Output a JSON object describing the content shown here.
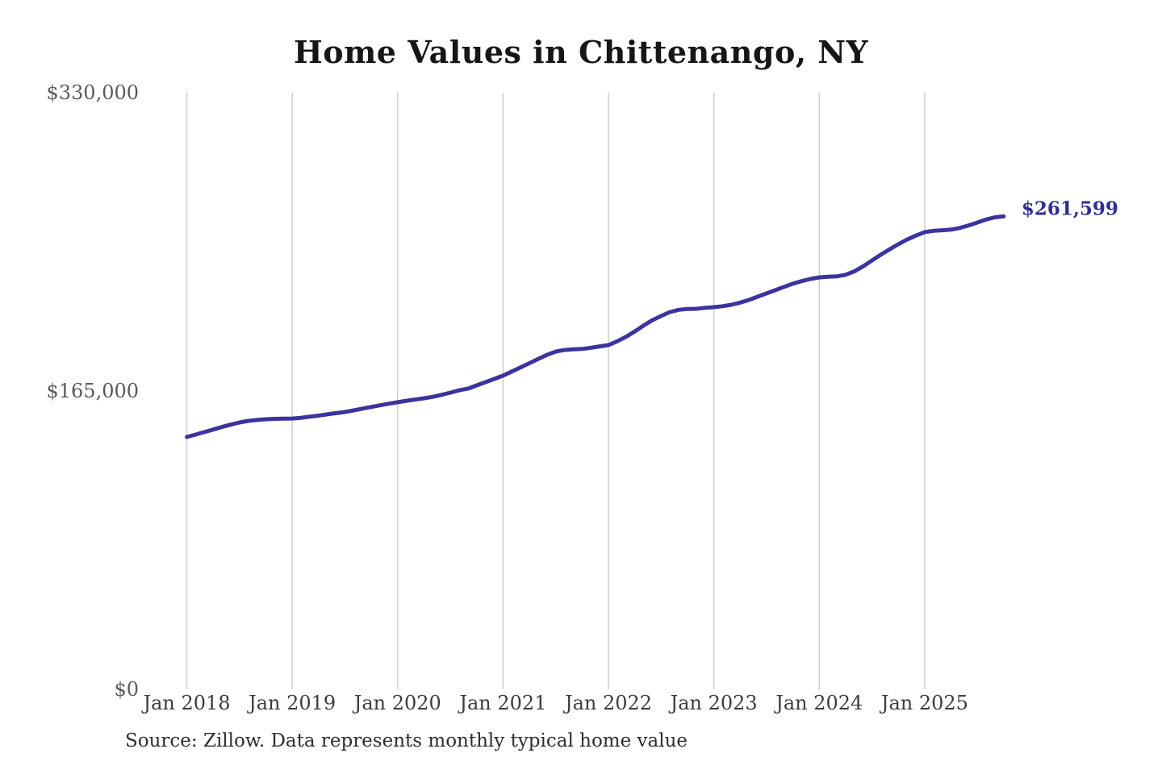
{
  "title": "Home Values in Chittenango, NY",
  "source_note": "Source: Zillow. Data represents monthly typical home value",
  "colors": {
    "line": "#3b349e",
    "final_label": "#312d94",
    "gridline": "#cbcbcb",
    "title_text": "#161616",
    "y_tick_text": "#5a5a5a",
    "x_tick_text": "#3d3d3d",
    "source_text": "#2e2e2e",
    "background": "#ffffff"
  },
  "chart_data": {
    "type": "line",
    "title": "Home Values in Chittenango, NY",
    "xlabel": "",
    "ylabel": "",
    "x_tick_labels": [
      "Jan 2018",
      "Jan 2019",
      "Jan 2020",
      "Jan 2021",
      "Jan 2022",
      "Jan 2023",
      "Jan 2024",
      "Jan 2025"
    ],
    "y_ticks": [
      {
        "value": 0,
        "label": "$0"
      },
      {
        "value": 165000,
        "label": "$165,000"
      },
      {
        "value": 330000,
        "label": "$330,000"
      }
    ],
    "ylim": [
      0,
      330000
    ],
    "grid": "vertical-year-lines-only",
    "legend": "none",
    "series": [
      {
        "name": "Monthly typical home value",
        "start_month": "2018-01",
        "end_month": "2025-10",
        "values": [
          139600,
          140900,
          142300,
          143700,
          145100,
          146400,
          147600,
          148500,
          149000,
          149400,
          149600,
          149700,
          149800,
          150200,
          150800,
          151400,
          152100,
          152800,
          153400,
          154300,
          155300,
          156200,
          157100,
          158000,
          158800,
          159600,
          160300,
          161000,
          161800,
          162900,
          164100,
          165400,
          166300,
          168100,
          169900,
          171700,
          173500,
          175800,
          178100,
          180400,
          182700,
          185000,
          186800,
          187700,
          188100,
          188300,
          188900,
          189700,
          190400,
          192500,
          195000,
          198000,
          201200,
          204200,
          206500,
          208700,
          209900,
          210400,
          210500,
          211000,
          211400,
          211900,
          212700,
          213900,
          215400,
          217200,
          219000,
          220800,
          222600,
          224400,
          225800,
          227000,
          227900,
          228200,
          228400,
          229300,
          231200,
          234000,
          237200,
          240400,
          243400,
          246200,
          248800,
          251000,
          252900,
          253600,
          253900,
          254300,
          255200,
          256600,
          258200,
          259900,
          261100,
          261599
        ]
      }
    ],
    "final_value": 261599,
    "final_value_label": "$261,599"
  }
}
